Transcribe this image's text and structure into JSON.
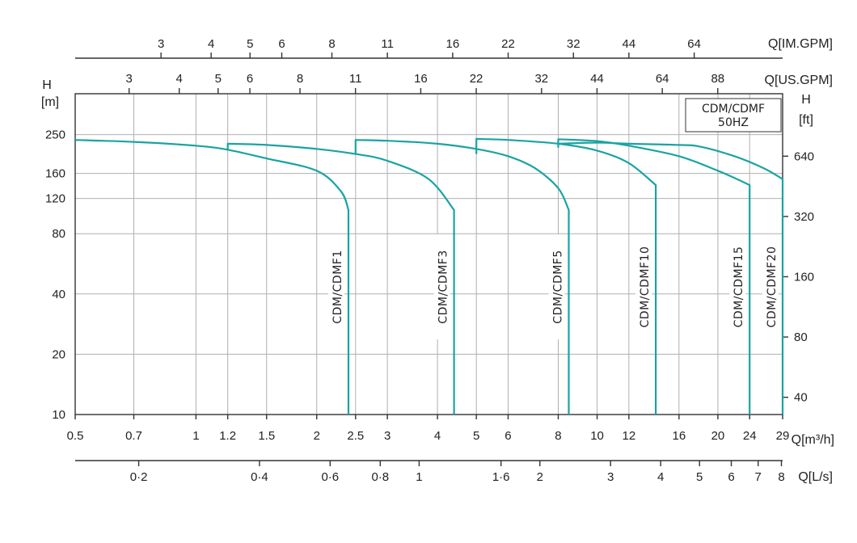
{
  "chart_data": {
    "type": "line",
    "legend_box": [
      "CDM/CDMF",
      "50HZ"
    ],
    "x_axes": {
      "m3h": {
        "unit_label": "Q[m³/h]",
        "ticks": [
          0.5,
          0.7,
          1,
          1.2,
          1.5,
          2,
          2.5,
          3,
          4,
          5,
          6,
          8,
          10,
          12,
          16,
          20,
          24,
          29
        ],
        "tick_labels": [
          "0.5",
          "0.7",
          "1",
          "1.2",
          "1.5",
          "2",
          "2.5",
          "3",
          "4",
          "5",
          "6",
          "8",
          "10",
          "12",
          "16",
          "20",
          "24",
          "29"
        ],
        "range": [
          0.5,
          29
        ],
        "scale": "log"
      },
      "ls": {
        "unit_label": "Q[L/s]",
        "ticks": [
          0.2,
          0.4,
          0.6,
          0.8,
          1,
          1.6,
          2,
          3,
          4,
          5,
          6,
          7,
          8
        ],
        "tick_labels": [
          "0·2",
          "0·4",
          "0·6",
          "0·8",
          "1",
          "1·6",
          "2",
          "3",
          "4",
          "5",
          "6",
          "7",
          "8"
        ]
      },
      "us_gpm": {
        "unit_label": "Q[US.GPM]",
        "ticks": [
          3,
          4,
          5,
          6,
          8,
          11,
          16,
          22,
          32,
          44,
          64,
          88
        ],
        "tick_labels": [
          "3",
          "4",
          "5",
          "6",
          "8",
          "11",
          "16",
          "22",
          "32",
          "44",
          "64",
          "88"
        ]
      },
      "im_gpm": {
        "unit_label": "Q[IM.GPM]",
        "ticks": [
          3,
          4,
          5,
          6,
          8,
          11,
          16,
          22,
          32,
          44,
          64
        ],
        "tick_labels": [
          "3",
          "4",
          "5",
          "6",
          "8",
          "11",
          "16",
          "22",
          "32",
          "44",
          "64"
        ]
      }
    },
    "y_axes": {
      "m": {
        "unit_label": [
          "H",
          "[m]"
        ],
        "ticks": [
          10,
          20,
          40,
          80,
          120,
          160,
          250
        ],
        "tick_labels": [
          "10",
          "20",
          "40",
          "80",
          "120",
          "160",
          "250"
        ],
        "range": [
          10,
          400
        ],
        "scale": "log"
      },
      "ft": {
        "unit_label": [
          "H",
          "[ft]"
        ],
        "ticks": [
          40,
          80,
          160,
          320,
          640
        ],
        "tick_labels": [
          "40",
          "80",
          "160",
          "320",
          "640"
        ]
      }
    },
    "series": [
      {
        "name": "CDM/CDMF1",
        "x": [
          0.5,
          0.7,
          1.0,
          1.2,
          1.5,
          2.0,
          2.3,
          2.4,
          2.4
        ],
        "y": [
          235,
          230,
          220,
          210,
          190,
          165,
          130,
          105,
          10
        ]
      },
      {
        "name": "CDM/CDMF3",
        "x": [
          1.2,
          1.2,
          1.5,
          2.0,
          2.5,
          3.0,
          3.8,
          4.4,
          4.4
        ],
        "y": [
          210,
          225,
          222,
          212,
          200,
          185,
          150,
          105,
          10
        ]
      },
      {
        "name": "CDM/CDMF5",
        "x": [
          2.5,
          2.5,
          3.0,
          4.0,
          5.0,
          6.0,
          7.0,
          8.0,
          8.5,
          8.5
        ],
        "y": [
          200,
          235,
          233,
          225,
          212,
          195,
          170,
          135,
          105,
          10
        ]
      },
      {
        "name": "CDM/CDMF10",
        "x": [
          5.0,
          5.0,
          6.0,
          8.0,
          10.0,
          12.0,
          14.0,
          14.0
        ],
        "y": [
          200,
          238,
          235,
          225,
          208,
          180,
          140,
          10
        ]
      },
      {
        "name": "CDM/CDMF15",
        "x": [
          8.0,
          8.0,
          10.0,
          12.0,
          16.0,
          20.0,
          24.0,
          24.0
        ],
        "y": [
          215,
          237,
          232,
          220,
          195,
          165,
          140,
          10
        ]
      },
      {
        "name": "CDM/CDMF20",
        "x": [
          8.0,
          10.0,
          12.0,
          16.0,
          18.0,
          22.0,
          26.0,
          29.0,
          29.0
        ],
        "y": [
          225,
          228,
          225,
          222,
          218,
          195,
          170,
          150,
          10
        ]
      }
    ]
  }
}
